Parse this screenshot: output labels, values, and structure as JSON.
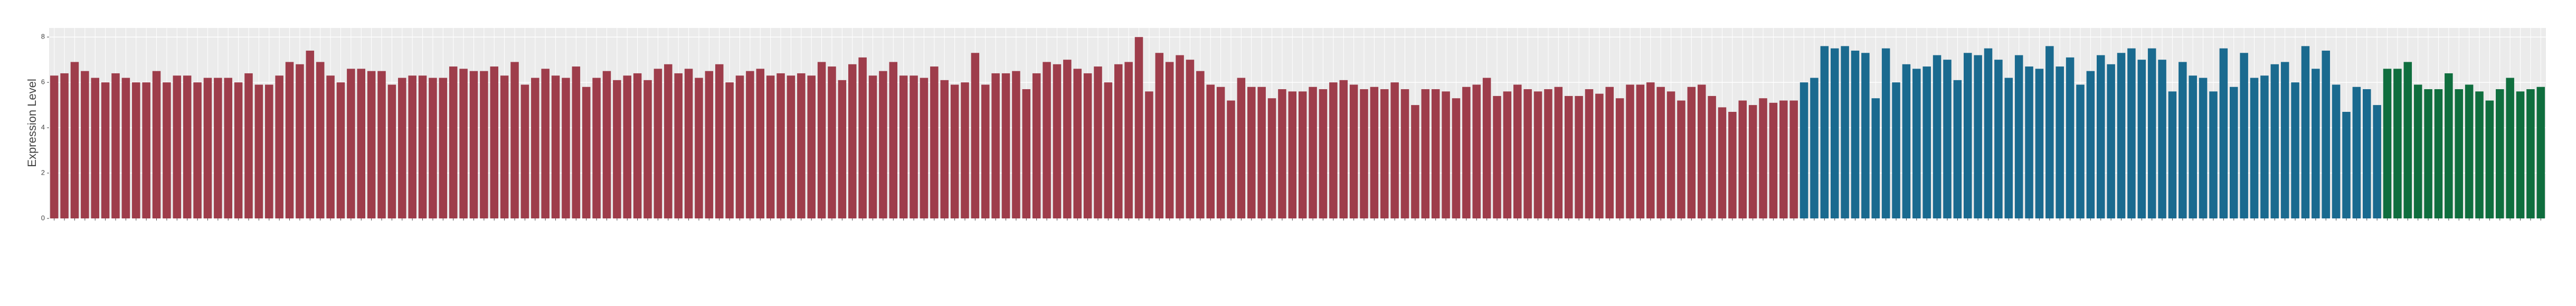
{
  "chart_data": {
    "type": "bar",
    "y_label": "Expression Level",
    "ylim": [
      0,
      8.4
    ],
    "yticks": [
      0,
      2,
      4,
      6,
      8
    ],
    "grid": true,
    "series": [
      {
        "color": "#9e3d4b",
        "values": [
          6.3,
          6.4,
          6.9,
          6.5,
          6.2,
          6.0,
          6.4,
          6.2,
          6.0,
          6.0,
          6.5,
          6.0,
          6.3,
          6.3,
          6.0,
          6.2,
          6.2,
          6.2,
          6.0,
          6.4,
          5.9,
          5.9,
          6.3,
          6.9,
          6.8,
          7.4,
          6.9,
          6.3,
          6.0,
          6.6,
          6.6,
          6.5,
          6.5,
          5.9,
          6.2,
          6.3,
          6.3,
          6.2,
          6.2,
          6.7,
          6.6,
          6.5,
          6.5,
          6.7,
          6.3,
          6.9,
          5.9,
          6.2,
          6.6,
          6.3,
          6.2,
          6.7,
          5.8,
          6.2,
          6.5,
          6.1,
          6.3,
          6.4,
          6.1,
          6.6,
          6.8,
          6.4,
          6.6,
          6.2,
          6.5,
          6.8,
          6.0,
          6.3,
          6.5,
          6.6,
          6.3,
          6.4,
          6.3,
          6.4,
          6.3,
          6.9,
          6.7,
          6.1,
          6.8,
          7.1,
          6.3,
          6.5,
          6.9,
          6.3,
          6.3,
          6.2,
          6.7,
          6.1,
          5.9,
          6.0,
          7.3,
          5.9,
          6.4,
          6.4,
          6.5,
          5.7,
          6.4,
          6.9,
          6.8,
          7.0,
          6.6,
          6.4,
          6.7,
          6.0,
          6.8,
          6.9,
          8.0,
          5.6,
          7.3,
          6.9,
          7.2,
          7.0,
          6.5,
          5.9,
          5.8,
          5.2,
          6.2,
          5.8,
          5.8,
          5.3,
          5.7,
          5.6,
          5.6,
          5.8,
          5.7,
          6.0,
          6.1,
          5.9,
          5.7,
          5.8,
          5.7,
          6.0,
          5.7,
          5.0,
          5.7,
          5.7,
          5.6,
          5.3,
          5.8,
          5.9,
          6.2,
          5.4,
          5.6,
          5.9,
          5.7,
          5.6,
          5.7,
          5.8,
          5.4,
          5.4,
          5.7,
          5.5,
          5.8,
          5.3,
          5.9,
          5.9,
          6.0,
          5.8,
          5.6,
          5.2,
          5.8,
          5.9,
          5.4,
          4.9,
          4.7,
          5.2,
          5.0,
          5.3,
          5.1,
          5.2,
          5.2
        ]
      },
      {
        "color": "#1a6a8f",
        "values": [
          6.0,
          6.2,
          7.6,
          7.5,
          7.6,
          7.4,
          7.3,
          5.3,
          7.5,
          6.0,
          6.8,
          6.6,
          6.7,
          7.2,
          7.0,
          6.1,
          7.3,
          7.2,
          7.5,
          7.0,
          6.2,
          7.2,
          6.7,
          6.6,
          7.6,
          6.7,
          7.1,
          5.9,
          6.5,
          7.2,
          6.8,
          7.3,
          7.5,
          7.0,
          7.5,
          7.0,
          5.6,
          6.9,
          6.3,
          6.2,
          5.6,
          7.5,
          5.8,
          7.3,
          6.2,
          6.3,
          6.8,
          6.9,
          6.0,
          7.6,
          6.6,
          7.4,
          5.9,
          4.7,
          5.8,
          5.7,
          5.0
        ]
      },
      {
        "color": "#0f6e3e",
        "values": [
          6.6,
          6.6,
          6.9,
          5.9,
          5.7,
          5.7,
          6.4,
          5.7,
          5.9,
          5.6,
          5.2,
          5.7,
          6.2,
          5.6,
          5.7,
          5.8
        ]
      }
    ]
  }
}
